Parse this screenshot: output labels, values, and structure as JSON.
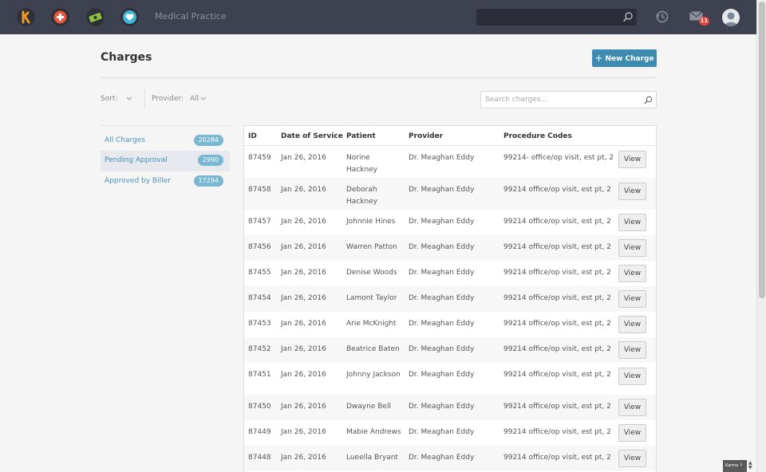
{
  "header": {
    "practice_name": "Medical Practice",
    "app_icons": [
      {
        "name": "karma-logo-icon",
        "color": "#f29a25"
      },
      {
        "name": "medical-cross-icon",
        "color": "#e8553a"
      },
      {
        "name": "billing-money-icon",
        "color": "#8fbf3e"
      },
      {
        "name": "patient-heart-icon",
        "color": "#3fb6d8"
      }
    ],
    "notifications_count": "11"
  },
  "page": {
    "title": "Charges",
    "new_charge_label": "New Charge"
  },
  "filters": {
    "sort_label": "Sort:",
    "provider_label": "Provider:",
    "provider_value": "All",
    "search_placeholder": "Search charges..."
  },
  "sidebar": {
    "items": [
      {
        "label": "All Charges",
        "count": "20284"
      },
      {
        "label": "Pending Approval",
        "count": "2990"
      },
      {
        "label": "Approved by Biller",
        "count": "17294"
      }
    ]
  },
  "table": {
    "columns": [
      "ID",
      "Date of Service",
      "Patient",
      "Provider",
      "Procedure Codes"
    ],
    "view_label": "View",
    "rows": [
      {
        "id": "87459",
        "date": "Jan 26, 2016",
        "patient": "Norine Hackney",
        "provider": "Dr. Meaghan Eddy",
        "codes": "99214- office/op visit, est pt, 2…"
      },
      {
        "id": "87458",
        "date": "Jan 26, 2016",
        "patient": "Deborah Hackney",
        "provider": "Dr. Meaghan Eddy",
        "codes": "99214 office/op visit, est pt, 2 …"
      },
      {
        "id": "87457",
        "date": "Jan 26, 2016",
        "patient": "Johnnie Hines",
        "provider": "Dr. Meaghan Eddy",
        "codes": "99214 office/op visit, est pt, 2 …"
      },
      {
        "id": "87456",
        "date": "Jan 26, 2016",
        "patient": "Warren Patton",
        "provider": "Dr. Meaghan Eddy",
        "codes": "99214 office/op visit, est pt, 2 …"
      },
      {
        "id": "87455",
        "date": "Jan 26, 2016",
        "patient": "Denise Woods",
        "provider": "Dr. Meaghan Eddy",
        "codes": "99214 office/op visit, est pt, 2 …"
      },
      {
        "id": "87454",
        "date": "Jan 26, 2016",
        "patient": "Lamont Taylor",
        "provider": "Dr. Meaghan Eddy",
        "codes": "99214 office/op visit, est pt, 2 …"
      },
      {
        "id": "87453",
        "date": "Jan 26, 2016",
        "patient": "Arie McKnight",
        "provider": "Dr. Meaghan Eddy",
        "codes": "99214 office/op visit, est pt, 2 …"
      },
      {
        "id": "87452",
        "date": "Jan 26, 2016",
        "patient": "Beatrice Baten",
        "provider": "Dr. Meaghan Eddy",
        "codes": "99214 office/op visit, est pt, 2 …"
      },
      {
        "id": "87451",
        "date": "Jan 26, 2016",
        "patient": "Johnny Jackson",
        "provider": "Dr. Meaghan Eddy",
        "codes": "99214 office/op visit, est pt, 2 …"
      },
      {
        "id": "87450",
        "date": "Jan 26, 2016",
        "patient": "Dwayne Bell",
        "provider": "Dr. Meaghan Eddy",
        "codes": "99214 office/op visit, est pt, 2 …"
      },
      {
        "id": "87449",
        "date": "Jan 26, 2016",
        "patient": "Mabie Andrews",
        "provider": "Dr. Meaghan Eddy",
        "codes": "99214 office/op visit, est pt, 2 …"
      },
      {
        "id": "87448",
        "date": "Jan 26, 2016",
        "patient": "Lueella Bryant",
        "provider": "Dr. Meaghan Eddy",
        "codes": "99214 office/op visit, est pt, 2 …"
      }
    ]
  },
  "widget": {
    "karma_label": "Karma"
  }
}
